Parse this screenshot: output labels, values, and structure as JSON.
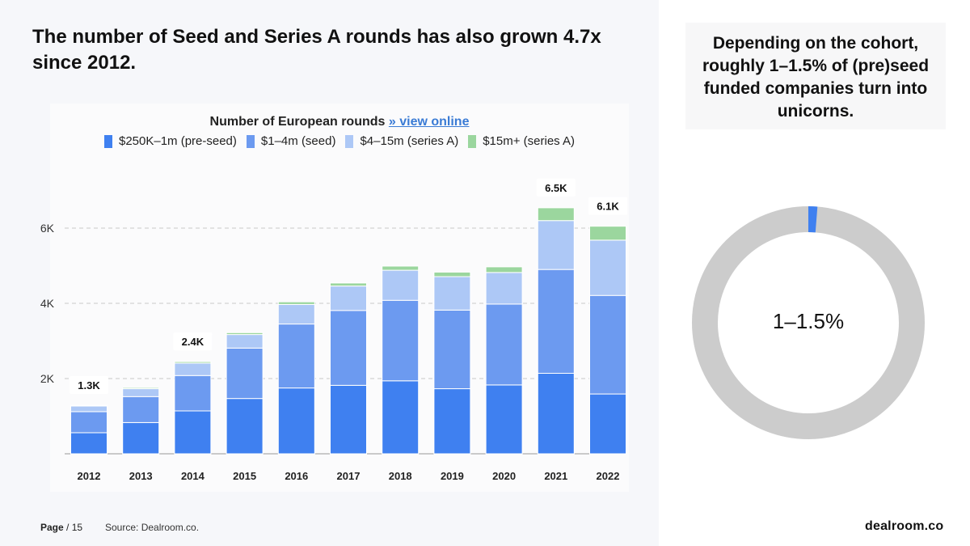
{
  "headline": "The number of Seed and Series A rounds has also grown 4.7x since 2012.",
  "chart_title": "Number of European rounds",
  "chart_link": "» view online",
  "legend": [
    {
      "label": "$250K–1m (pre-seed)",
      "color": "#3f80f0"
    },
    {
      "label": "$1–4m (seed)",
      "color": "#6c9af0"
    },
    {
      "label": "$4–15m (series A)",
      "color": "#adc8f6"
    },
    {
      "label": "$15m+ (series A)",
      "color": "#9bd69e"
    }
  ],
  "chart_data": {
    "type": "bar",
    "stacked": true,
    "title": "Number of European rounds",
    "categories": [
      "2012",
      "2013",
      "2014",
      "2015",
      "2016",
      "2017",
      "2018",
      "2019",
      "2020",
      "2021",
      "2022"
    ],
    "series": [
      {
        "name": "$250K–1m (pre-seed)",
        "color": "#3f80f0",
        "values": [
          0.56,
          0.83,
          1.14,
          1.47,
          1.75,
          1.82,
          1.94,
          1.73,
          1.83,
          2.14,
          1.59
        ]
      },
      {
        "name": "$1–4m (seed)",
        "color": "#6c9af0",
        "values": [
          0.56,
          0.69,
          0.94,
          1.34,
          1.7,
          1.99,
          2.14,
          2.09,
          2.15,
          2.76,
          2.62
        ]
      },
      {
        "name": "$4–15m (series A)",
        "color": "#adc8f6",
        "values": [
          0.15,
          0.21,
          0.33,
          0.36,
          0.52,
          0.65,
          0.8,
          0.89,
          0.84,
          1.3,
          1.47
        ]
      },
      {
        "name": "$15m+ (series A)",
        "color": "#9bd69e",
        "values": [
          0.02,
          0.03,
          0.04,
          0.05,
          0.07,
          0.08,
          0.11,
          0.12,
          0.15,
          0.34,
          0.37
        ]
      }
    ],
    "totals_labels": [
      {
        "category": "2012",
        "label": "1.3K"
      },
      {
        "category": "2014",
        "label": "2.4K"
      },
      {
        "category": "2021",
        "label": "6.5K"
      },
      {
        "category": "2022",
        "label": "6.1K"
      }
    ],
    "y_ticks": [
      2,
      4,
      6
    ],
    "y_tick_labels": [
      "2K",
      "4K",
      "6K"
    ],
    "ylim": [
      0,
      7
    ],
    "grid": "dashed-horizontal",
    "xlabel": "",
    "ylabel": "",
    "unit": "thousands of rounds"
  },
  "side_note": "Depending on the cohort, roughly 1–1.5% of (pre)seed funded companies turn into unicorns.",
  "donut": {
    "label": "1–1.5%",
    "highlight_percent": 1.25,
    "highlight_color": "#3f80f0",
    "rest_color": "#cccccc"
  },
  "footer": {
    "page_label": "Page",
    "page_total": "/ 15",
    "source": "Source: Dealroom.co."
  },
  "logo": "dealroom.co"
}
